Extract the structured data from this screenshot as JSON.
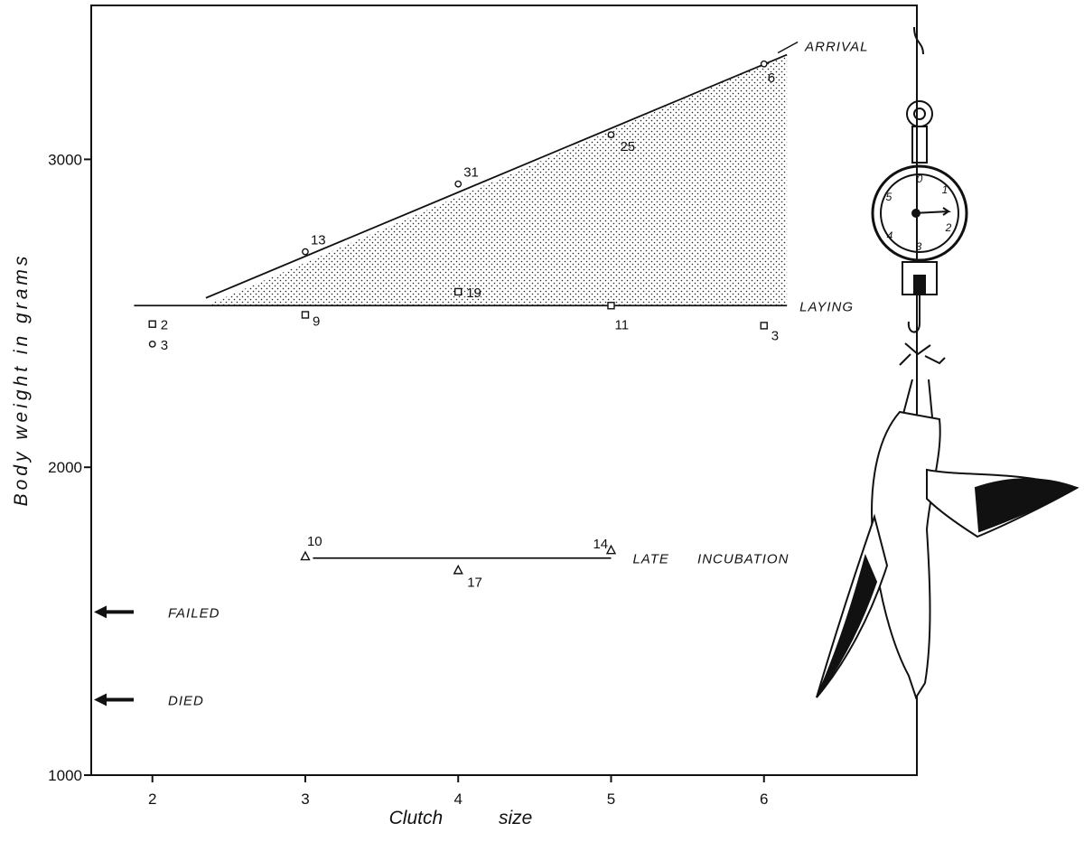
{
  "chart_data": {
    "type": "scatter",
    "title": "",
    "xlabel": "Clutch size",
    "ylabel": "Body weight in grams",
    "xlim": [
      1.6,
      7.0
    ],
    "ylim": [
      1000,
      3500
    ],
    "x_ticks": [
      2,
      3,
      4,
      5,
      6
    ],
    "y_ticks": [
      1000,
      2000,
      3000
    ],
    "grid": false,
    "series": [
      {
        "name": "ARRIVAL",
        "marker": "circle",
        "points": [
          {
            "x": 2,
            "y": 2400,
            "n": "3"
          },
          {
            "x": 3,
            "y": 2700,
            "n": "13"
          },
          {
            "x": 4,
            "y": 2920,
            "n": "31"
          },
          {
            "x": 5,
            "y": 3080,
            "n": "25"
          },
          {
            "x": 6,
            "y": 3310,
            "n": "6"
          }
        ],
        "line": {
          "x": [
            2.35,
            6.15
          ],
          "y": [
            2550,
            3340
          ]
        }
      },
      {
        "name": "LAYING",
        "marker": "square",
        "points": [
          {
            "x": 2,
            "y": 2465,
            "n": "2"
          },
          {
            "x": 3,
            "y": 2495,
            "n": "9"
          },
          {
            "x": 4,
            "y": 2570,
            "n": "19"
          },
          {
            "x": 5,
            "y": 2525,
            "n": "11"
          },
          {
            "x": 6,
            "y": 2460,
            "n": "3"
          }
        ],
        "line": {
          "x": [
            1.88,
            6.15
          ],
          "y": [
            2525,
            2525
          ]
        }
      },
      {
        "name": "LATE INCUBATION",
        "marker": "triangle",
        "points": [
          {
            "x": 3,
            "y": 1710,
            "n": "10"
          },
          {
            "x": 4,
            "y": 1665,
            "n": "17"
          },
          {
            "x": 5,
            "y": 1730,
            "n": "14"
          }
        ],
        "line": {
          "x": [
            3.05,
            5.0
          ],
          "y": [
            1705,
            1705
          ]
        }
      }
    ],
    "reference_markers": [
      {
        "label": "FAILED",
        "y": 1530
      },
      {
        "label": "DIED",
        "y": 1245
      }
    ]
  }
}
